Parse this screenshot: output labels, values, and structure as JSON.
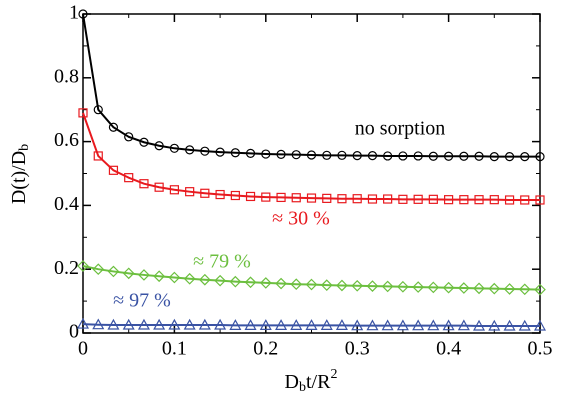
{
  "chart_data": {
    "type": "line",
    "xlabel": [
      "D",
      "b",
      "t/R",
      "2"
    ],
    "ylabel": [
      "D(t)/D",
      "b"
    ],
    "x": [
      0,
      0.0167,
      0.0333,
      0.05,
      0.0667,
      0.0833,
      0.1,
      0.1167,
      0.1333,
      0.15,
      0.1667,
      0.1833,
      0.2,
      0.2167,
      0.2333,
      0.25,
      0.2667,
      0.2833,
      0.3,
      0.3167,
      0.3333,
      0.35,
      0.3667,
      0.3833,
      0.4,
      0.4167,
      0.4333,
      0.45,
      0.4667,
      0.4833,
      0.5
    ],
    "series": [
      {
        "name": "no sorption",
        "color": "#000000",
        "marker": "circle",
        "values": [
          1.0,
          0.7,
          0.645,
          0.615,
          0.598,
          0.587,
          0.579,
          0.574,
          0.57,
          0.567,
          0.565,
          0.563,
          0.561,
          0.56,
          0.559,
          0.558,
          0.557,
          0.557,
          0.556,
          0.556,
          0.555,
          0.555,
          0.555,
          0.554,
          0.554,
          0.554,
          0.554,
          0.553,
          0.553,
          0.553,
          0.553
        ]
      },
      {
        "name": "≈ 30 %",
        "color": "#e8191e",
        "marker": "square",
        "values": [
          0.69,
          0.555,
          0.51,
          0.487,
          0.468,
          0.457,
          0.449,
          0.443,
          0.438,
          0.434,
          0.431,
          0.428,
          0.426,
          0.425,
          0.424,
          0.423,
          0.422,
          0.421,
          0.421,
          0.42,
          0.42,
          0.419,
          0.419,
          0.419,
          0.418,
          0.418,
          0.418,
          0.418,
          0.417,
          0.417,
          0.417
        ]
      },
      {
        "name": "≈ 79 %",
        "color": "#6cbf3f",
        "marker": "diamond",
        "values": [
          0.21,
          0.2,
          0.193,
          0.187,
          0.182,
          0.178,
          0.174,
          0.17,
          0.167,
          0.164,
          0.161,
          0.159,
          0.157,
          0.155,
          0.153,
          0.152,
          0.15,
          0.149,
          0.148,
          0.147,
          0.146,
          0.145,
          0.144,
          0.143,
          0.142,
          0.141,
          0.14,
          0.139,
          0.138,
          0.137,
          0.136
        ]
      },
      {
        "name": "≈ 97 %",
        "color": "#3a53a4",
        "marker": "triangle",
        "values": [
          0.028,
          0.026,
          0.025,
          0.025,
          0.025,
          0.025,
          0.025,
          0.025,
          0.025,
          0.025,
          0.024,
          0.024,
          0.024,
          0.024,
          0.024,
          0.024,
          0.024,
          0.024,
          0.023,
          0.023,
          0.023,
          0.023,
          0.023,
          0.023,
          0.023,
          0.023,
          0.022,
          0.022,
          0.022,
          0.022,
          0.022
        ]
      }
    ],
    "xlim": [
      0,
      0.5
    ],
    "xticks": [
      0,
      0.1,
      0.2,
      0.3,
      0.4,
      0.5
    ],
    "xminorticks": [
      0.05,
      0.15,
      0.25,
      0.35,
      0.45
    ],
    "ylim": [
      0,
      1
    ],
    "yticks": [
      0,
      0.2,
      0.4,
      0.6,
      0.8,
      1
    ],
    "yminorticks": [
      0.1,
      0.3,
      0.5,
      0.7,
      0.9
    ]
  }
}
